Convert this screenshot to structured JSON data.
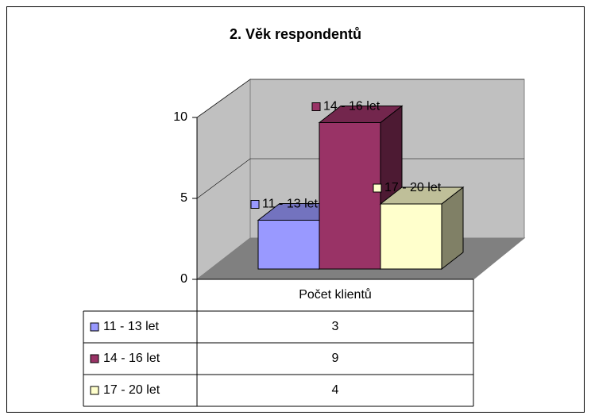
{
  "chart_data": {
    "type": "bar3d",
    "title": "2. Věk respondentů",
    "categories": [
      "Počet klientů"
    ],
    "series": [
      {
        "name": "11 - 13 let",
        "color": "#9999ff",
        "values": [
          3
        ]
      },
      {
        "name": "14 - 16 let",
        "color": "#993366",
        "values": [
          9
        ]
      },
      {
        "name": "17 - 20 let",
        "color": "#ffffcc",
        "values": [
          4
        ]
      }
    ],
    "ylim": [
      0,
      10
    ],
    "yticks": [
      0,
      5,
      10
    ],
    "grid": true,
    "data_table": true
  }
}
